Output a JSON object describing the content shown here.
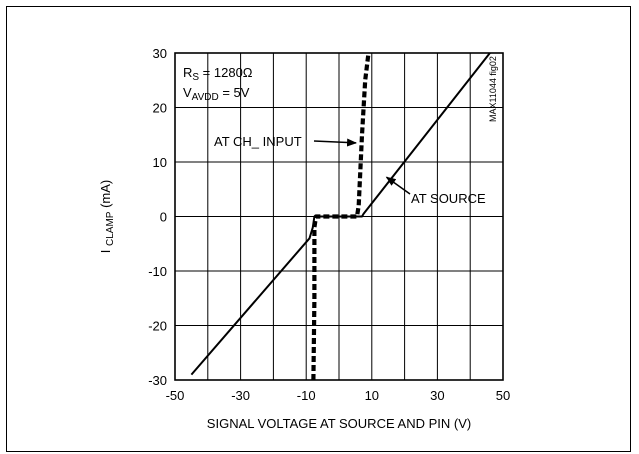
{
  "chart_data": {
    "type": "line",
    "xlabel": "SIGNAL VOLTAGE AT SOURCE AND PIN (V)",
    "ylabel": {
      "main": "I",
      "sub": "CLAMP",
      "unit": " (mA)"
    },
    "xlim": [
      -50,
      50
    ],
    "ylim": [
      -30,
      30
    ],
    "xticks": [
      -50,
      -30,
      -10,
      10,
      30,
      50
    ],
    "yticks": [
      30,
      20,
      10,
      0,
      -10,
      -20,
      -30
    ],
    "grid": true,
    "series": [
      {
        "name": "AT SOURCE",
        "style": "solid",
        "x": [
          -45,
          -9,
          -8,
          -7.5,
          7,
          7.5,
          46
        ],
        "y": [
          -29,
          -4,
          -2,
          0,
          0,
          0.5,
          30
        ]
      },
      {
        "name": "AT CH_ INPUT",
        "style": "dashed",
        "x": [
          -7.8,
          -7.5,
          -7.5,
          -7,
          -6,
          5.5,
          6,
          7,
          8,
          9
        ],
        "y": [
          -30,
          -15,
          -2,
          0,
          0,
          0,
          2,
          15,
          25,
          30
        ]
      }
    ],
    "annotations": [
      {
        "lines": [
          {
            "main": "R",
            "sub": "S",
            "rest": " = 1280Ω"
          },
          {
            "main": "V",
            "sub": "AVDD",
            "rest": " = 5V"
          }
        ]
      },
      {
        "text": "AT CH_ INPUT",
        "arrow_to": [
          5.2,
          13.5
        ]
      },
      {
        "text": "AT SOURCE",
        "arrow_to": [
          14.5,
          7.2
        ]
      }
    ],
    "figure_id": "MAX11044 fig02"
  }
}
